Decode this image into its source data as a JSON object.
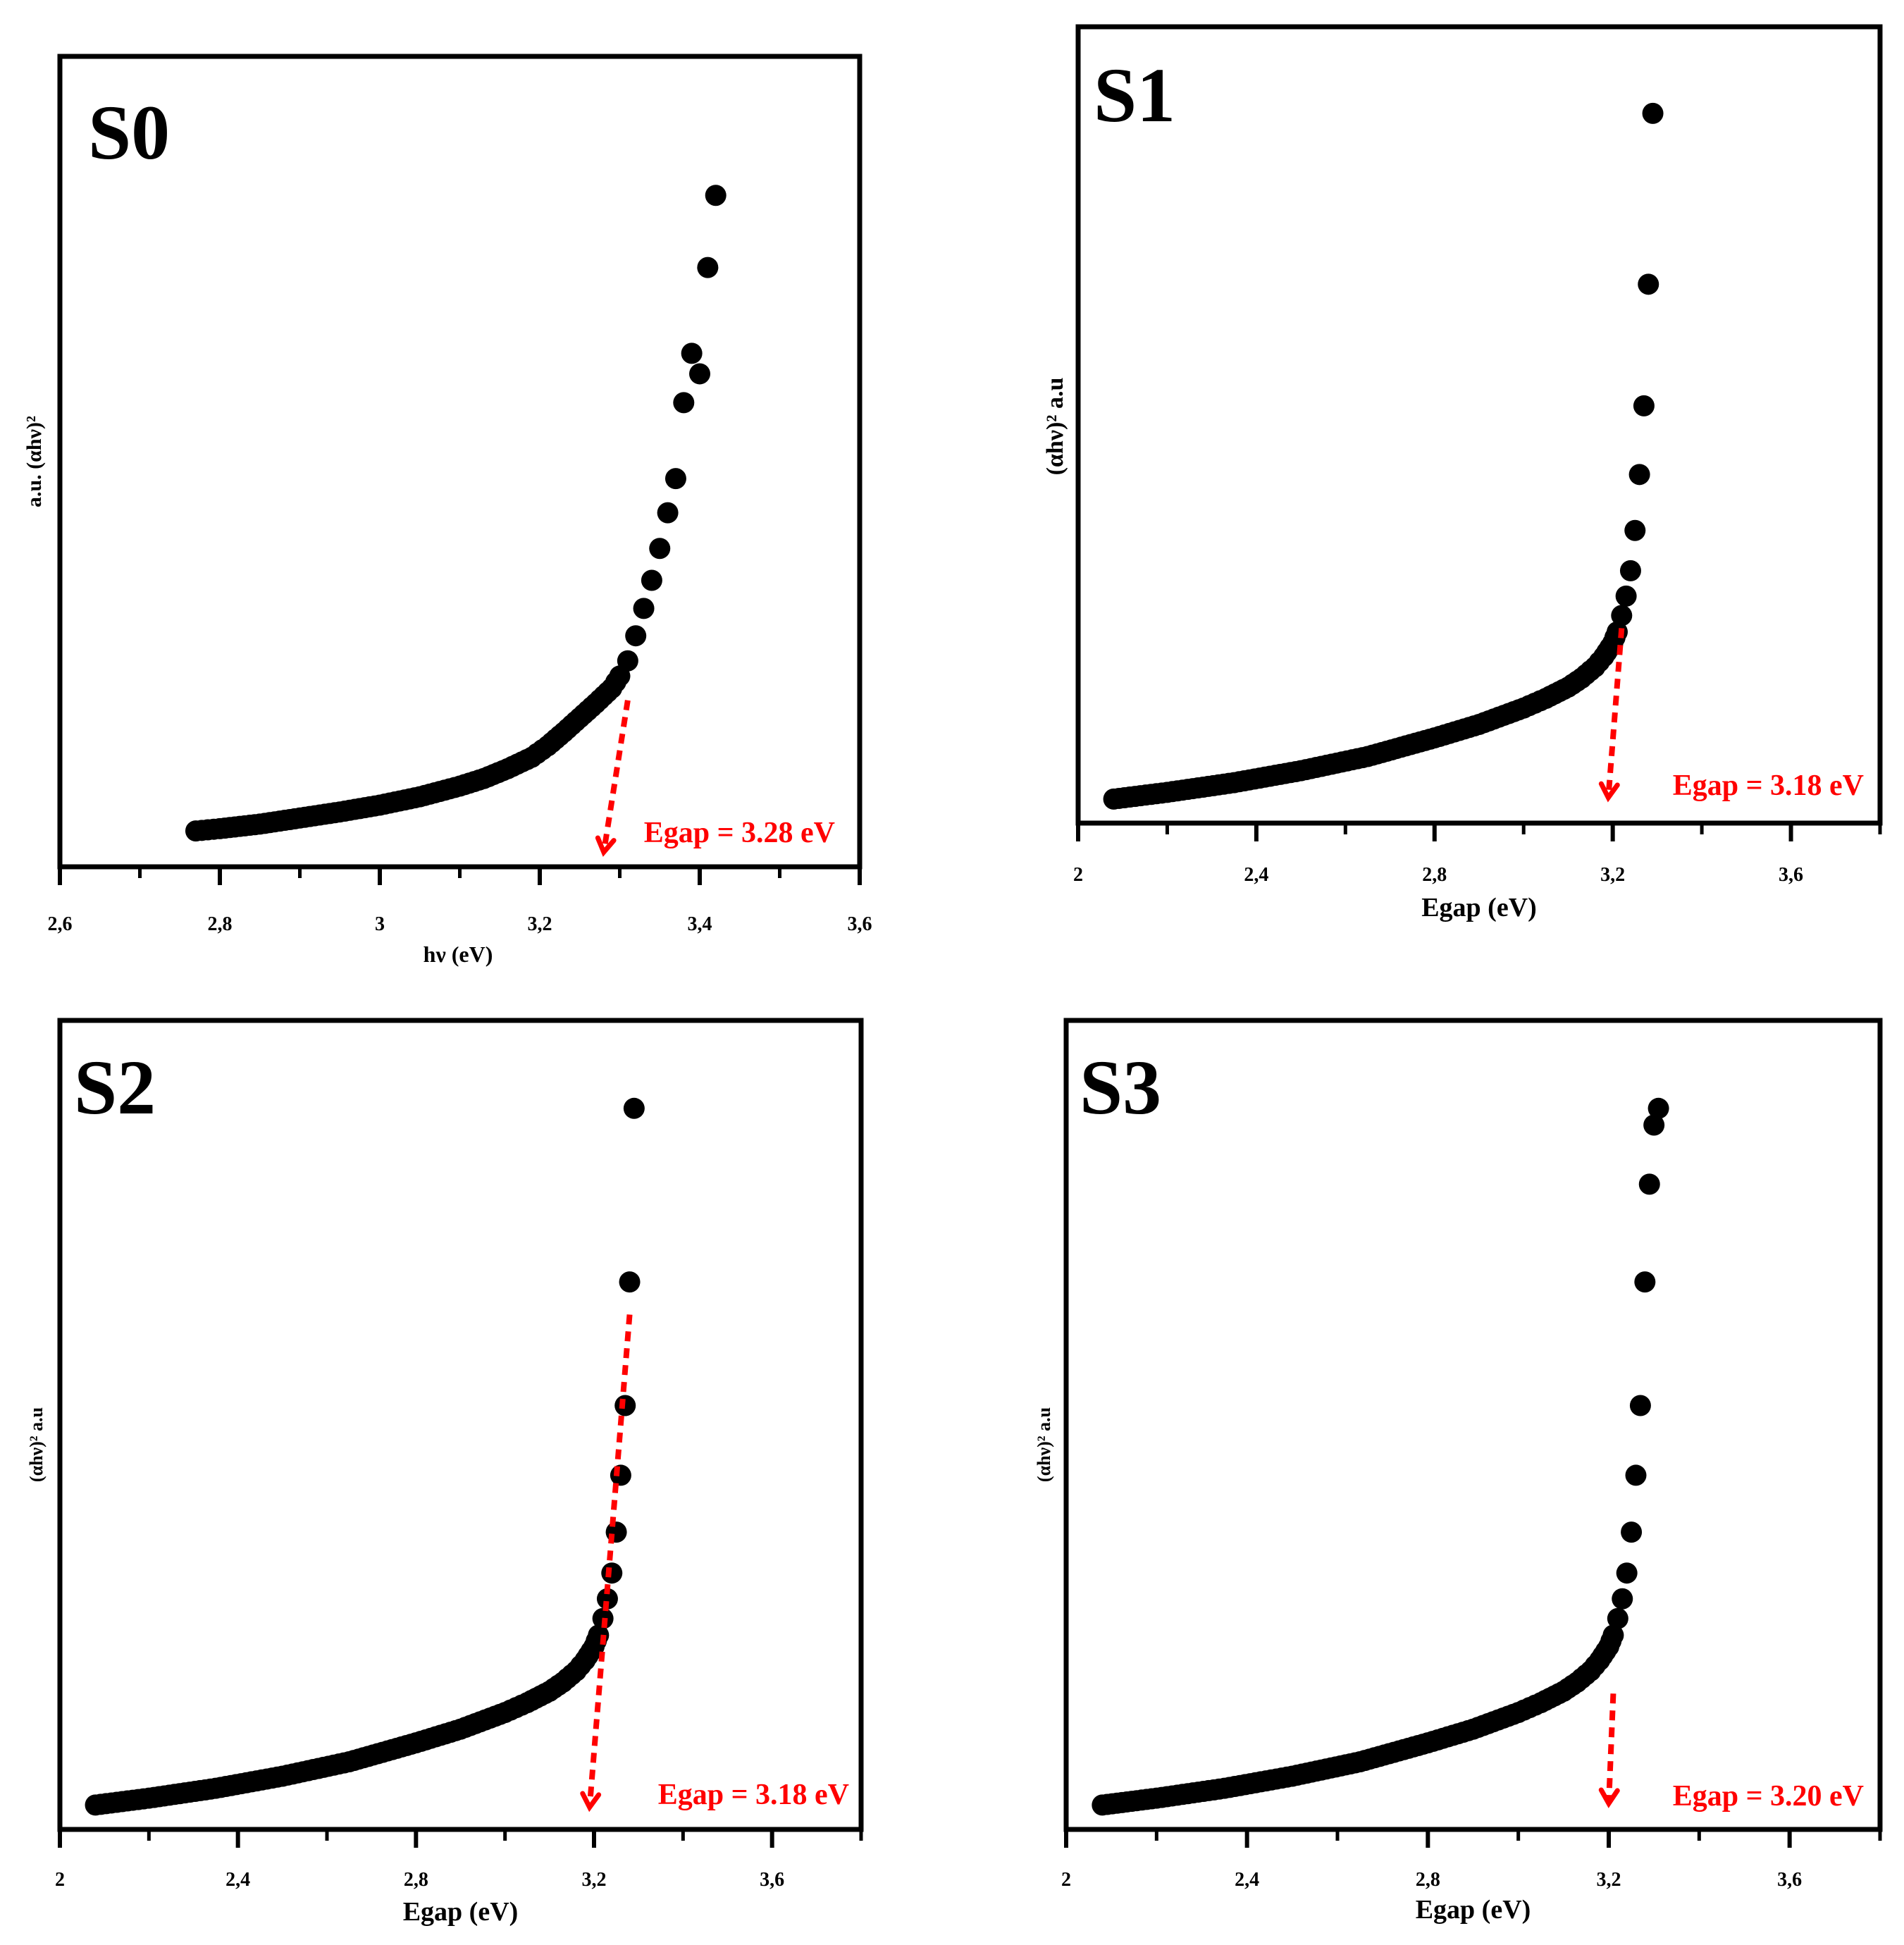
{
  "chart_data": [
    {
      "id": "S0",
      "type": "scatter",
      "panel_label": "S0",
      "xlabel": "hν (eV)",
      "ylabel": "a.u. (αhν)²",
      "xlim": [
        2.6,
        3.6
      ],
      "ylim": [
        0,
        1
      ],
      "x_ticks": [
        "2,6",
        "2,8",
        "3",
        "3,2",
        "3,4",
        "3,6"
      ],
      "x_tick_values": [
        2.6,
        2.8,
        3.0,
        3.2,
        3.4,
        3.6
      ],
      "minor_tick_values": [
        2.7,
        2.9,
        3.1,
        3.3,
        3.5
      ],
      "egap_label": "Egap = 3.28 eV",
      "egap_value": 3.28,
      "tangent": [
        [
          3.31,
          0.2
        ],
        [
          3.28,
          0.0
        ]
      ],
      "series": [
        {
          "name": "S0",
          "x": [
            2.77,
            2.8,
            2.85,
            2.9,
            2.95,
            3.0,
            3.05,
            3.1,
            3.13,
            3.16,
            3.19,
            3.21,
            3.23,
            3.25,
            3.27,
            3.29,
            3.3,
            3.31,
            3.32,
            3.33,
            3.34,
            3.35,
            3.36,
            3.37,
            3.38,
            3.39,
            3.4,
            3.41,
            3.42
          ],
          "y": [
            0.028,
            0.031,
            0.037,
            0.045,
            0.053,
            0.062,
            0.073,
            0.087,
            0.097,
            0.11,
            0.125,
            0.14,
            0.158,
            0.177,
            0.196,
            0.216,
            0.232,
            0.252,
            0.285,
            0.321,
            0.358,
            0.4,
            0.447,
            0.492,
            0.592,
            0.657,
            0.63,
            0.77,
            0.865
          ]
        }
      ]
    },
    {
      "id": "S1",
      "type": "scatter",
      "panel_label": "S1",
      "xlabel": "Egap (eV)",
      "ylabel": "(αhν)² a.u",
      "xlim": [
        2.0,
        3.8
      ],
      "ylim": [
        0,
        1
      ],
      "x_ticks": [
        "2",
        "2,4",
        "2,8",
        "3,2",
        "3,6"
      ],
      "x_tick_values": [
        2.0,
        2.4,
        2.8,
        3.2,
        3.6
      ],
      "minor_tick_values": [
        2.2,
        2.6,
        3.0,
        3.4,
        3.8
      ],
      "egap_label": "Egap = 3.18 eV",
      "egap_value": 3.18,
      "tangent": [
        [
          3.22,
          0.242
        ],
        [
          3.19,
          0.015
        ]
      ],
      "series": [
        {
          "name": "S1",
          "x": [
            2.08,
            2.2,
            2.35,
            2.5,
            2.65,
            2.8,
            2.9,
            3.0,
            3.05,
            3.1,
            3.13,
            3.16,
            3.18,
            3.2,
            3.21,
            3.22,
            3.23,
            3.24,
            3.25,
            3.26,
            3.27,
            3.28,
            3.29
          ],
          "y": [
            0.013,
            0.022,
            0.035,
            0.051,
            0.07,
            0.095,
            0.113,
            0.135,
            0.148,
            0.163,
            0.175,
            0.19,
            0.204,
            0.222,
            0.237,
            0.259,
            0.285,
            0.319,
            0.373,
            0.448,
            0.54,
            0.703,
            0.932
          ]
        }
      ]
    },
    {
      "id": "S2",
      "type": "scatter",
      "panel_label": "S2",
      "xlabel": "Egap (eV)",
      "ylabel": "(αhν)² a.u",
      "xlim": [
        2.0,
        3.8
      ],
      "ylim": [
        0,
        1
      ],
      "x_ticks": [
        "2",
        "2,4",
        "2,8",
        "3,2",
        "3,6"
      ],
      "x_tick_values": [
        2.0,
        2.4,
        2.8,
        3.2,
        3.6
      ],
      "minor_tick_values": [
        2.2,
        2.6,
        3.0,
        3.4,
        3.8
      ],
      "egap_label": "Egap = 3.18 eV",
      "egap_value": 3.18,
      "tangent": [
        [
          3.28,
          0.66
        ],
        [
          3.19,
          0.01
        ]
      ],
      "series": [
        {
          "name": "S2",
          "x": [
            2.08,
            2.2,
            2.35,
            2.5,
            2.65,
            2.8,
            2.9,
            3.0,
            3.05,
            3.1,
            3.13,
            3.16,
            3.18,
            3.2,
            3.21,
            3.22,
            3.23,
            3.24,
            3.25,
            3.26,
            3.27,
            3.28,
            3.29
          ],
          "y": [
            0.013,
            0.022,
            0.035,
            0.051,
            0.07,
            0.095,
            0.113,
            0.135,
            0.148,
            0.163,
            0.175,
            0.19,
            0.204,
            0.222,
            0.237,
            0.259,
            0.285,
            0.319,
            0.373,
            0.448,
            0.54,
            0.703,
            0.932
          ]
        }
      ]
    },
    {
      "id": "S3",
      "type": "scatter",
      "panel_label": "S3",
      "xlabel": "Egap (eV)",
      "ylabel": "(αhν)² a.u",
      "xlim": [
        2.0,
        3.8
      ],
      "ylim": [
        0,
        1
      ],
      "x_ticks": [
        "2",
        "2,4",
        "2,8",
        "3,2",
        "3,6"
      ],
      "x_tick_values": [
        2.0,
        2.4,
        2.8,
        3.2,
        3.6
      ],
      "minor_tick_values": [
        2.2,
        2.6,
        3.0,
        3.4,
        3.8
      ],
      "egap_label": "Egap = 3.20 eV",
      "egap_value": 3.2,
      "tangent": [
        [
          3.21,
          0.16
        ],
        [
          3.2,
          0.015
        ]
      ],
      "series": [
        {
          "name": "S3",
          "x": [
            2.08,
            2.2,
            2.35,
            2.5,
            2.65,
            2.8,
            2.9,
            3.0,
            3.05,
            3.1,
            3.13,
            3.16,
            3.18,
            3.2,
            3.21,
            3.22,
            3.23,
            3.24,
            3.25,
            3.26,
            3.27,
            3.28,
            3.29,
            3.3,
            3.31
          ],
          "y": [
            0.013,
            0.022,
            0.035,
            0.051,
            0.07,
            0.095,
            0.113,
            0.135,
            0.148,
            0.163,
            0.175,
            0.19,
            0.204,
            0.222,
            0.237,
            0.259,
            0.285,
            0.319,
            0.373,
            0.448,
            0.54,
            0.703,
            0.832,
            0.91,
            0.932
          ]
        }
      ]
    }
  ]
}
